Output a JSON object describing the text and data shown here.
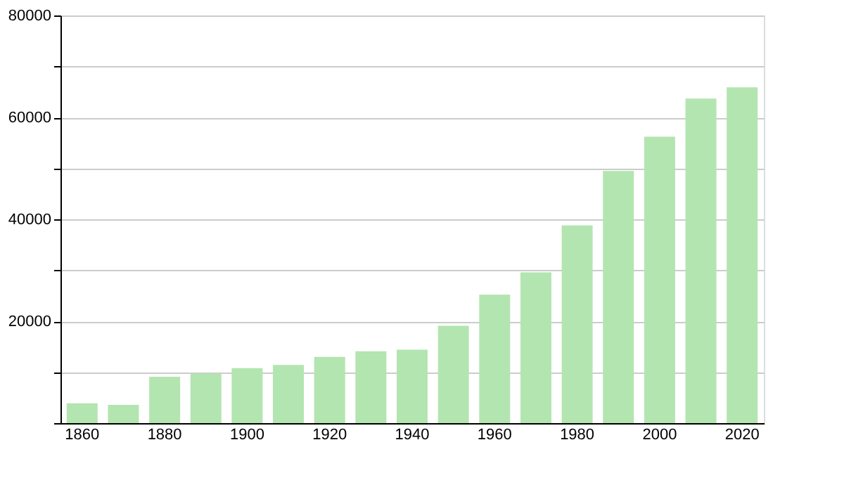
{
  "chart_data": {
    "type": "bar",
    "categories": [
      "1860",
      null,
      "1880",
      null,
      "1900",
      null,
      "1920",
      null,
      "1940",
      null,
      "1960",
      null,
      "1980",
      null,
      "2000",
      null,
      "2020"
    ],
    "values": [
      3900,
      3600,
      9100,
      9700,
      10800,
      11400,
      13000,
      14100,
      14400,
      19100,
      25200,
      29600,
      38800,
      49500,
      56200,
      63700,
      65900
    ],
    "color": "#b3e5b0",
    "ylim": [
      0,
      80000
    ],
    "yticks": [
      {
        "value": 0,
        "label": null
      },
      {
        "value": 10000,
        "label": null
      },
      20000,
      {
        "value": 30000,
        "label": null
      },
      40000,
      {
        "value": 50000,
        "label": null
      },
      60000,
      {
        "value": 70000,
        "label": null
      },
      80000
    ],
    "grid": "y"
  }
}
